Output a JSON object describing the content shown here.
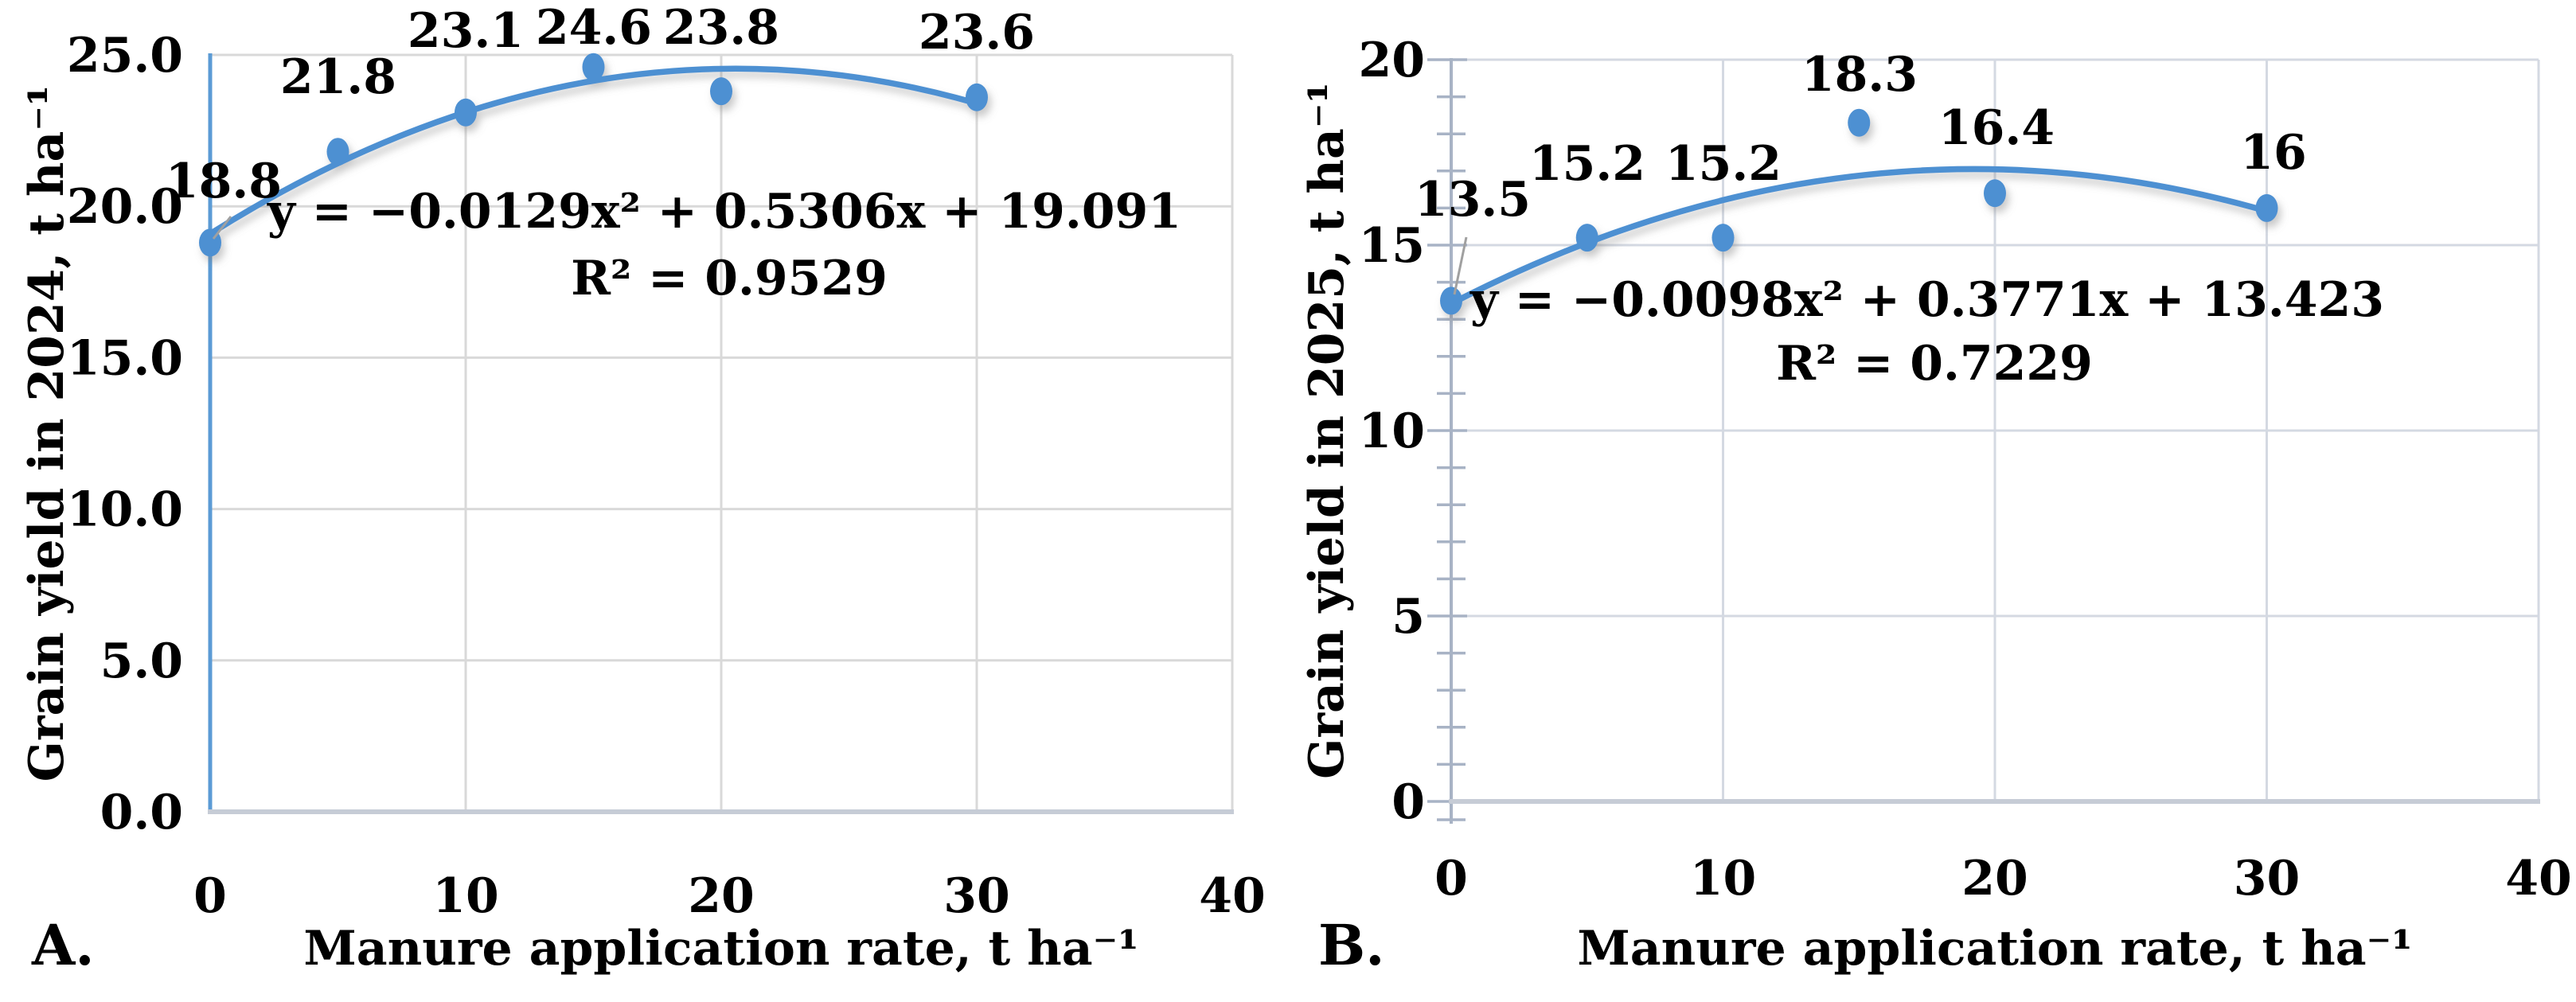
{
  "style": {
    "background": "#ffffff",
    "series_color": "#4E90D2",
    "axis_blue": "#5B9BD5",
    "axis_gray": "#C6CCD6",
    "grid_color": "#D9D9D9",
    "grid_color_b": "#D4D9E2",
    "tick_color": "#A8B3C5",
    "leader_color": "#A0A0A0",
    "text_color": "#000000"
  },
  "chart_data": [
    {
      "type": "scatter",
      "panel_label": "A.",
      "xlabel": "Manure application rate, t ha⁻¹",
      "ylabel": "Grain yield in 2024, t ha⁻¹",
      "x": [
        0,
        5,
        10,
        15,
        20,
        30
      ],
      "y": [
        18.8,
        21.8,
        23.1,
        24.6,
        23.8,
        23.6
      ],
      "point_labels": [
        "18.8",
        "21.8",
        "23.1",
        "24.6",
        "23.8",
        "23.6"
      ],
      "xlim": [
        0,
        40
      ],
      "ylim": [
        0,
        25
      ],
      "x_tick_labels": [
        "0",
        "10",
        "20",
        "30",
        "40"
      ],
      "y_tick_labels": [
        "0.0",
        "5.0",
        "10.0",
        "15.0",
        "20.0",
        "25.0"
      ],
      "trendline": {
        "type": "polynomial-2",
        "a": -0.0129,
        "b": 0.5306,
        "c": 19.091,
        "x_range": [
          0,
          30
        ]
      },
      "equation": "y = −0.0129x² + 0.5306x + 19.091",
      "r_squared": "R² = 0.9529",
      "grid": "on",
      "legend": "none",
      "marker": "circle"
    },
    {
      "type": "scatter",
      "panel_label": "B.",
      "xlabel": "Manure application rate, t ha⁻¹",
      "ylabel": "Grain yield in 2025, t ha⁻¹",
      "x": [
        0,
        5,
        10,
        15,
        20,
        30
      ],
      "y": [
        13.5,
        15.2,
        15.2,
        18.3,
        16.4,
        16
      ],
      "point_labels": [
        "13.5",
        "15.2",
        "15.2",
        "18.3",
        "16.4",
        "16"
      ],
      "xlim": [
        0,
        40
      ],
      "ylim": [
        0,
        20
      ],
      "x_tick_labels": [
        "0",
        "10",
        "20",
        "30",
        "40"
      ],
      "y_tick_labels": [
        "0",
        "5",
        "10",
        "15",
        "20"
      ],
      "trendline": {
        "type": "polynomial-2",
        "a": -0.0098,
        "b": 0.3771,
        "c": 13.423,
        "x_range": [
          0,
          30
        ]
      },
      "equation": "y = −0.0098x² + 0.3771x + 13.423",
      "r_squared": "R² = 0.7229",
      "grid": "on",
      "legend": "none",
      "marker": "circle"
    }
  ]
}
